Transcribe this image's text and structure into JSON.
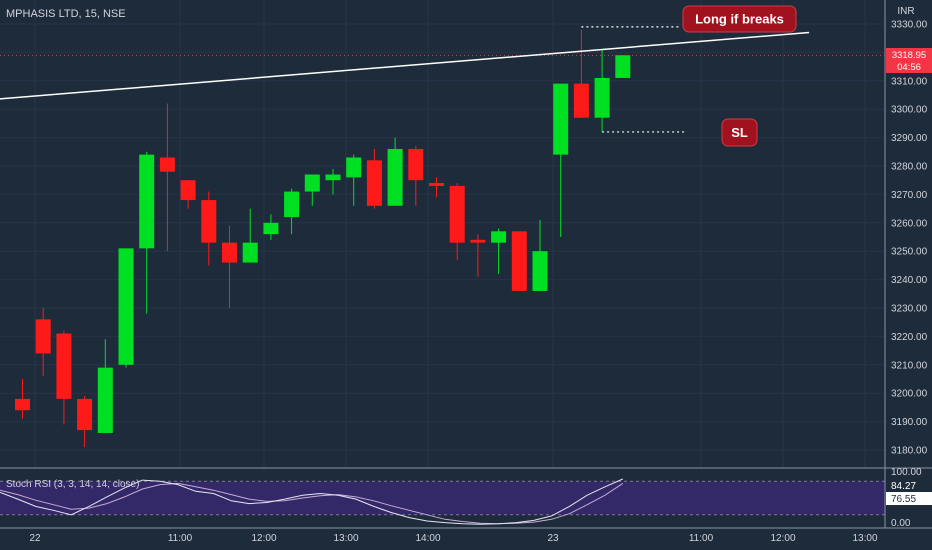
{
  "header": {
    "symbol_title": "MPHASIS LTD, 15, NSE",
    "currency": "INR"
  },
  "price_badge": {
    "price": "3318.95",
    "countdown": "04:56",
    "color": "#f23645"
  },
  "colors": {
    "up": "#00e022",
    "down": "#ff1a1a",
    "bg": "#1e2b3b",
    "stoch_band": "#3b2a7a"
  },
  "annotations": {
    "long_label": "Long if breaks",
    "sl_label": "SL"
  },
  "indicator": {
    "label": "Stoch RSI (3, 3, 14, 14, close)",
    "value_k": "84.27",
    "value_d": "76.55",
    "scale_labels": [
      "100.00",
      "0.00"
    ]
  },
  "chart_data": {
    "type": "candlestick",
    "ylim": [
      3172,
      3334
    ],
    "y_ticks": [
      "3330.00",
      "3320.00",
      "3310.00",
      "3300.00",
      "3290.00",
      "3280.00",
      "3270.00",
      "3260.00",
      "3250.00",
      "3240.00",
      "3230.00",
      "3220.00",
      "3210.00",
      "3200.00",
      "3190.00",
      "3180.00"
    ],
    "x_ticks": [
      "22",
      "11:00",
      "12:00",
      "13:00",
      "14:00",
      "23",
      "11:00",
      "12:00",
      "13:00"
    ],
    "candles": [
      {
        "o": 3198,
        "h": 3205,
        "l": 3191,
        "c": 3194
      },
      {
        "o": 3226,
        "h": 3230,
        "l": 3206,
        "c": 3214
      },
      {
        "o": 3221,
        "h": 3222,
        "l": 3189,
        "c": 3198
      },
      {
        "o": 3198,
        "h": 3199,
        "l": 3181,
        "c": 3187
      },
      {
        "o": 3186,
        "h": 3219,
        "l": 3186,
        "c": 3209
      },
      {
        "o": 3210,
        "h": 3251,
        "l": 3209,
        "c": 3251
      },
      {
        "o": 3251,
        "h": 3285,
        "l": 3228,
        "c": 3284
      },
      {
        "o": 3283,
        "h": 3302,
        "l": 3250,
        "c": 3278
      },
      {
        "o": 3275,
        "h": 3275,
        "l": 3265,
        "c": 3268
      },
      {
        "o": 3268,
        "h": 3271,
        "l": 3245,
        "c": 3253
      },
      {
        "o": 3253,
        "h": 3259,
        "l": 3230,
        "c": 3246
      },
      {
        "o": 3246,
        "h": 3265,
        "l": 3246,
        "c": 3253
      },
      {
        "o": 3256,
        "h": 3263,
        "l": 3254,
        "c": 3260
      },
      {
        "o": 3262,
        "h": 3272,
        "l": 3256,
        "c": 3271
      },
      {
        "o": 3271,
        "h": 3277,
        "l": 3266,
        "c": 3277
      },
      {
        "o": 3275,
        "h": 3279,
        "l": 3270,
        "c": 3277
      },
      {
        "o": 3276,
        "h": 3284,
        "l": 3266,
        "c": 3283
      },
      {
        "o": 3282,
        "h": 3286,
        "l": 3265,
        "c": 3266
      },
      {
        "o": 3266,
        "h": 3290,
        "l": 3266,
        "c": 3286
      },
      {
        "o": 3286,
        "h": 3287,
        "l": 3266,
        "c": 3275
      },
      {
        "o": 3274,
        "h": 3276,
        "l": 3269,
        "c": 3273
      },
      {
        "o": 3273,
        "h": 3274,
        "l": 3247,
        "c": 3253
      },
      {
        "o": 3254,
        "h": 3256,
        "l": 3241,
        "c": 3253
      },
      {
        "o": 3253,
        "h": 3258,
        "l": 3242,
        "c": 3257
      },
      {
        "o": 3257,
        "h": 3257,
        "l": 3236,
        "c": 3236
      },
      {
        "o": 3236,
        "h": 3261,
        "l": 3236,
        "c": 3250
      },
      {
        "o": 3284,
        "h": 3309,
        "l": 3255,
        "c": 3309
      },
      {
        "o": 3309,
        "h": 3328,
        "l": 3297,
        "c": 3297
      },
      {
        "o": 3297,
        "h": 3321,
        "l": 3292,
        "c": 3311
      },
      {
        "o": 3311,
        "h": 3319,
        "l": 3311,
        "c": 3319
      }
    ],
    "trendline": {
      "start": {
        "candle": -5.5,
        "price": 3301
      },
      "end": {
        "candle": 38,
        "price": 3327
      }
    },
    "levels": [
      {
        "label": "Long if breaks",
        "price": 3329
      },
      {
        "label": "SL",
        "price": 3292
      }
    ],
    "stoch_rsi": {
      "k": [
        60,
        48,
        35,
        28,
        20,
        35,
        52,
        68,
        82,
        80,
        74,
        62,
        58,
        45,
        40,
        42,
        48,
        55,
        58,
        55,
        48,
        35,
        24,
        15,
        9,
        6,
        4,
        3,
        4,
        6,
        10,
        18,
        35,
        55,
        70,
        84
      ],
      "d": [
        64,
        56,
        46,
        38,
        30,
        32,
        40,
        52,
        66,
        74,
        76,
        70,
        64,
        56,
        48,
        44,
        45,
        50,
        54,
        56,
        52,
        45,
        36,
        28,
        20,
        12,
        8,
        5,
        4,
        5,
        7,
        12,
        22,
        38,
        55,
        76
      ],
      "ylim": [
        0,
        100
      ]
    }
  }
}
